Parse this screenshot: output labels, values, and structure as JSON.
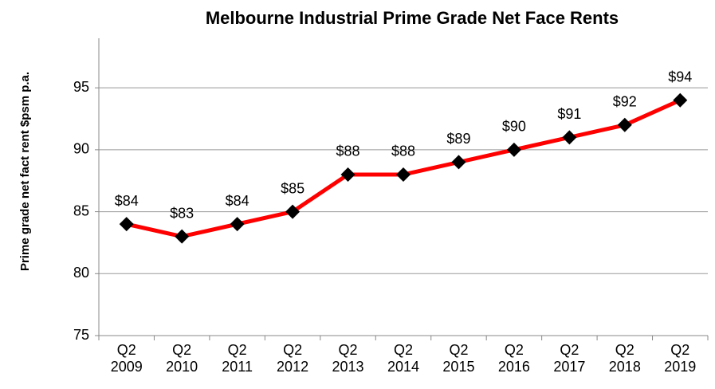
{
  "chart_data": {
    "type": "line",
    "title": "Melbourne Industrial Prime Grade Net Face Rents",
    "y_label": "Prime grade net fact rent $psm p.a.",
    "categories": [
      "Q2 2009",
      "Q2 2010",
      "Q2 2011",
      "Q2 2012",
      "Q2 2013",
      "Q2 2014",
      "Q2 2015",
      "Q2 2016",
      "Q2 2017",
      "Q2 2018",
      "Q2 2019"
    ],
    "values": [
      84,
      83,
      84,
      85,
      88,
      88,
      89,
      90,
      91,
      92,
      94
    ],
    "value_labels": [
      "$84",
      "$83",
      "$84",
      "$85",
      "$88",
      "$88",
      "$89",
      "$90",
      "$91",
      "$92",
      "$94"
    ],
    "color": "#ff0000",
    "marker_color": "#000000",
    "ylim": [
      75,
      99
    ],
    "yticks": [
      75,
      80,
      85,
      90,
      95
    ],
    "grid": true
  }
}
